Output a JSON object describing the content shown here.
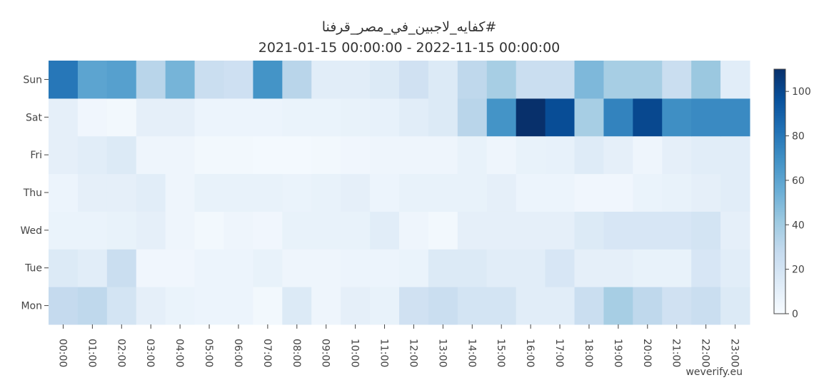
{
  "chart_data": {
    "type": "heatmap",
    "title": "كفايه_لاجبين_في_مصر_قرفنا#",
    "subtitle": "2021-01-15 00:00:00 - 2022-11-15 00:00:00",
    "x": [
      "00:00",
      "01:00",
      "02:00",
      "03:00",
      "04:00",
      "05:00",
      "06:00",
      "07:00",
      "08:00",
      "09:00",
      "10:00",
      "11:00",
      "12:00",
      "13:00",
      "14:00",
      "15:00",
      "16:00",
      "17:00",
      "18:00",
      "19:00",
      "20:00",
      "21:00",
      "22:00",
      "23:00"
    ],
    "y": [
      "Mon",
      "Tue",
      "Wed",
      "Thu",
      "Fri",
      "Sat",
      "Sun"
    ],
    "z": [
      [
        28,
        30,
        20,
        10,
        7,
        6,
        6,
        3,
        15,
        5,
        10,
        8,
        22,
        25,
        20,
        20,
        12,
        12,
        25,
        38,
        30,
        22,
        25,
        15
      ],
      [
        15,
        12,
        25,
        4,
        4,
        6,
        6,
        8,
        5,
        5,
        6,
        6,
        7,
        15,
        15,
        12,
        12,
        18,
        10,
        10,
        8,
        8,
        18,
        12
      ],
      [
        7,
        7,
        8,
        10,
        5,
        3,
        5,
        4,
        8,
        8,
        8,
        12,
        5,
        3,
        10,
        10,
        10,
        10,
        15,
        18,
        18,
        18,
        20,
        10
      ],
      [
        6,
        10,
        10,
        12,
        5,
        8,
        8,
        8,
        7,
        8,
        10,
        6,
        8,
        8,
        8,
        10,
        6,
        6,
        4,
        4,
        7,
        8,
        10,
        12
      ],
      [
        10,
        12,
        15,
        5,
        5,
        3,
        3,
        2,
        2,
        3,
        4,
        5,
        5,
        5,
        8,
        5,
        8,
        9,
        14,
        10,
        5,
        10,
        12,
        12
      ],
      [
        10,
        4,
        3,
        10,
        10,
        6,
        6,
        6,
        7,
        7,
        8,
        9,
        12,
        15,
        32,
        68,
        110,
        98,
        38,
        75,
        100,
        70,
        72,
        72
      ],
      [
        80,
        60,
        62,
        32,
        52,
        25,
        23,
        68,
        32,
        12,
        12,
        15,
        22,
        15,
        30,
        38,
        25,
        25,
        50,
        38,
        38,
        25,
        42,
        12
      ]
    ],
    "zlim": [
      0,
      110
    ],
    "zticks": [
      0,
      20,
      40,
      60,
      80,
      100
    ],
    "colorscale": [
      "#f7fbff",
      "#deebf7",
      "#c6dbef",
      "#9ecae1",
      "#6baed6",
      "#4292c6",
      "#2171b5",
      "#08519c",
      "#08306b"
    ],
    "watermark": "weverify.eu"
  }
}
